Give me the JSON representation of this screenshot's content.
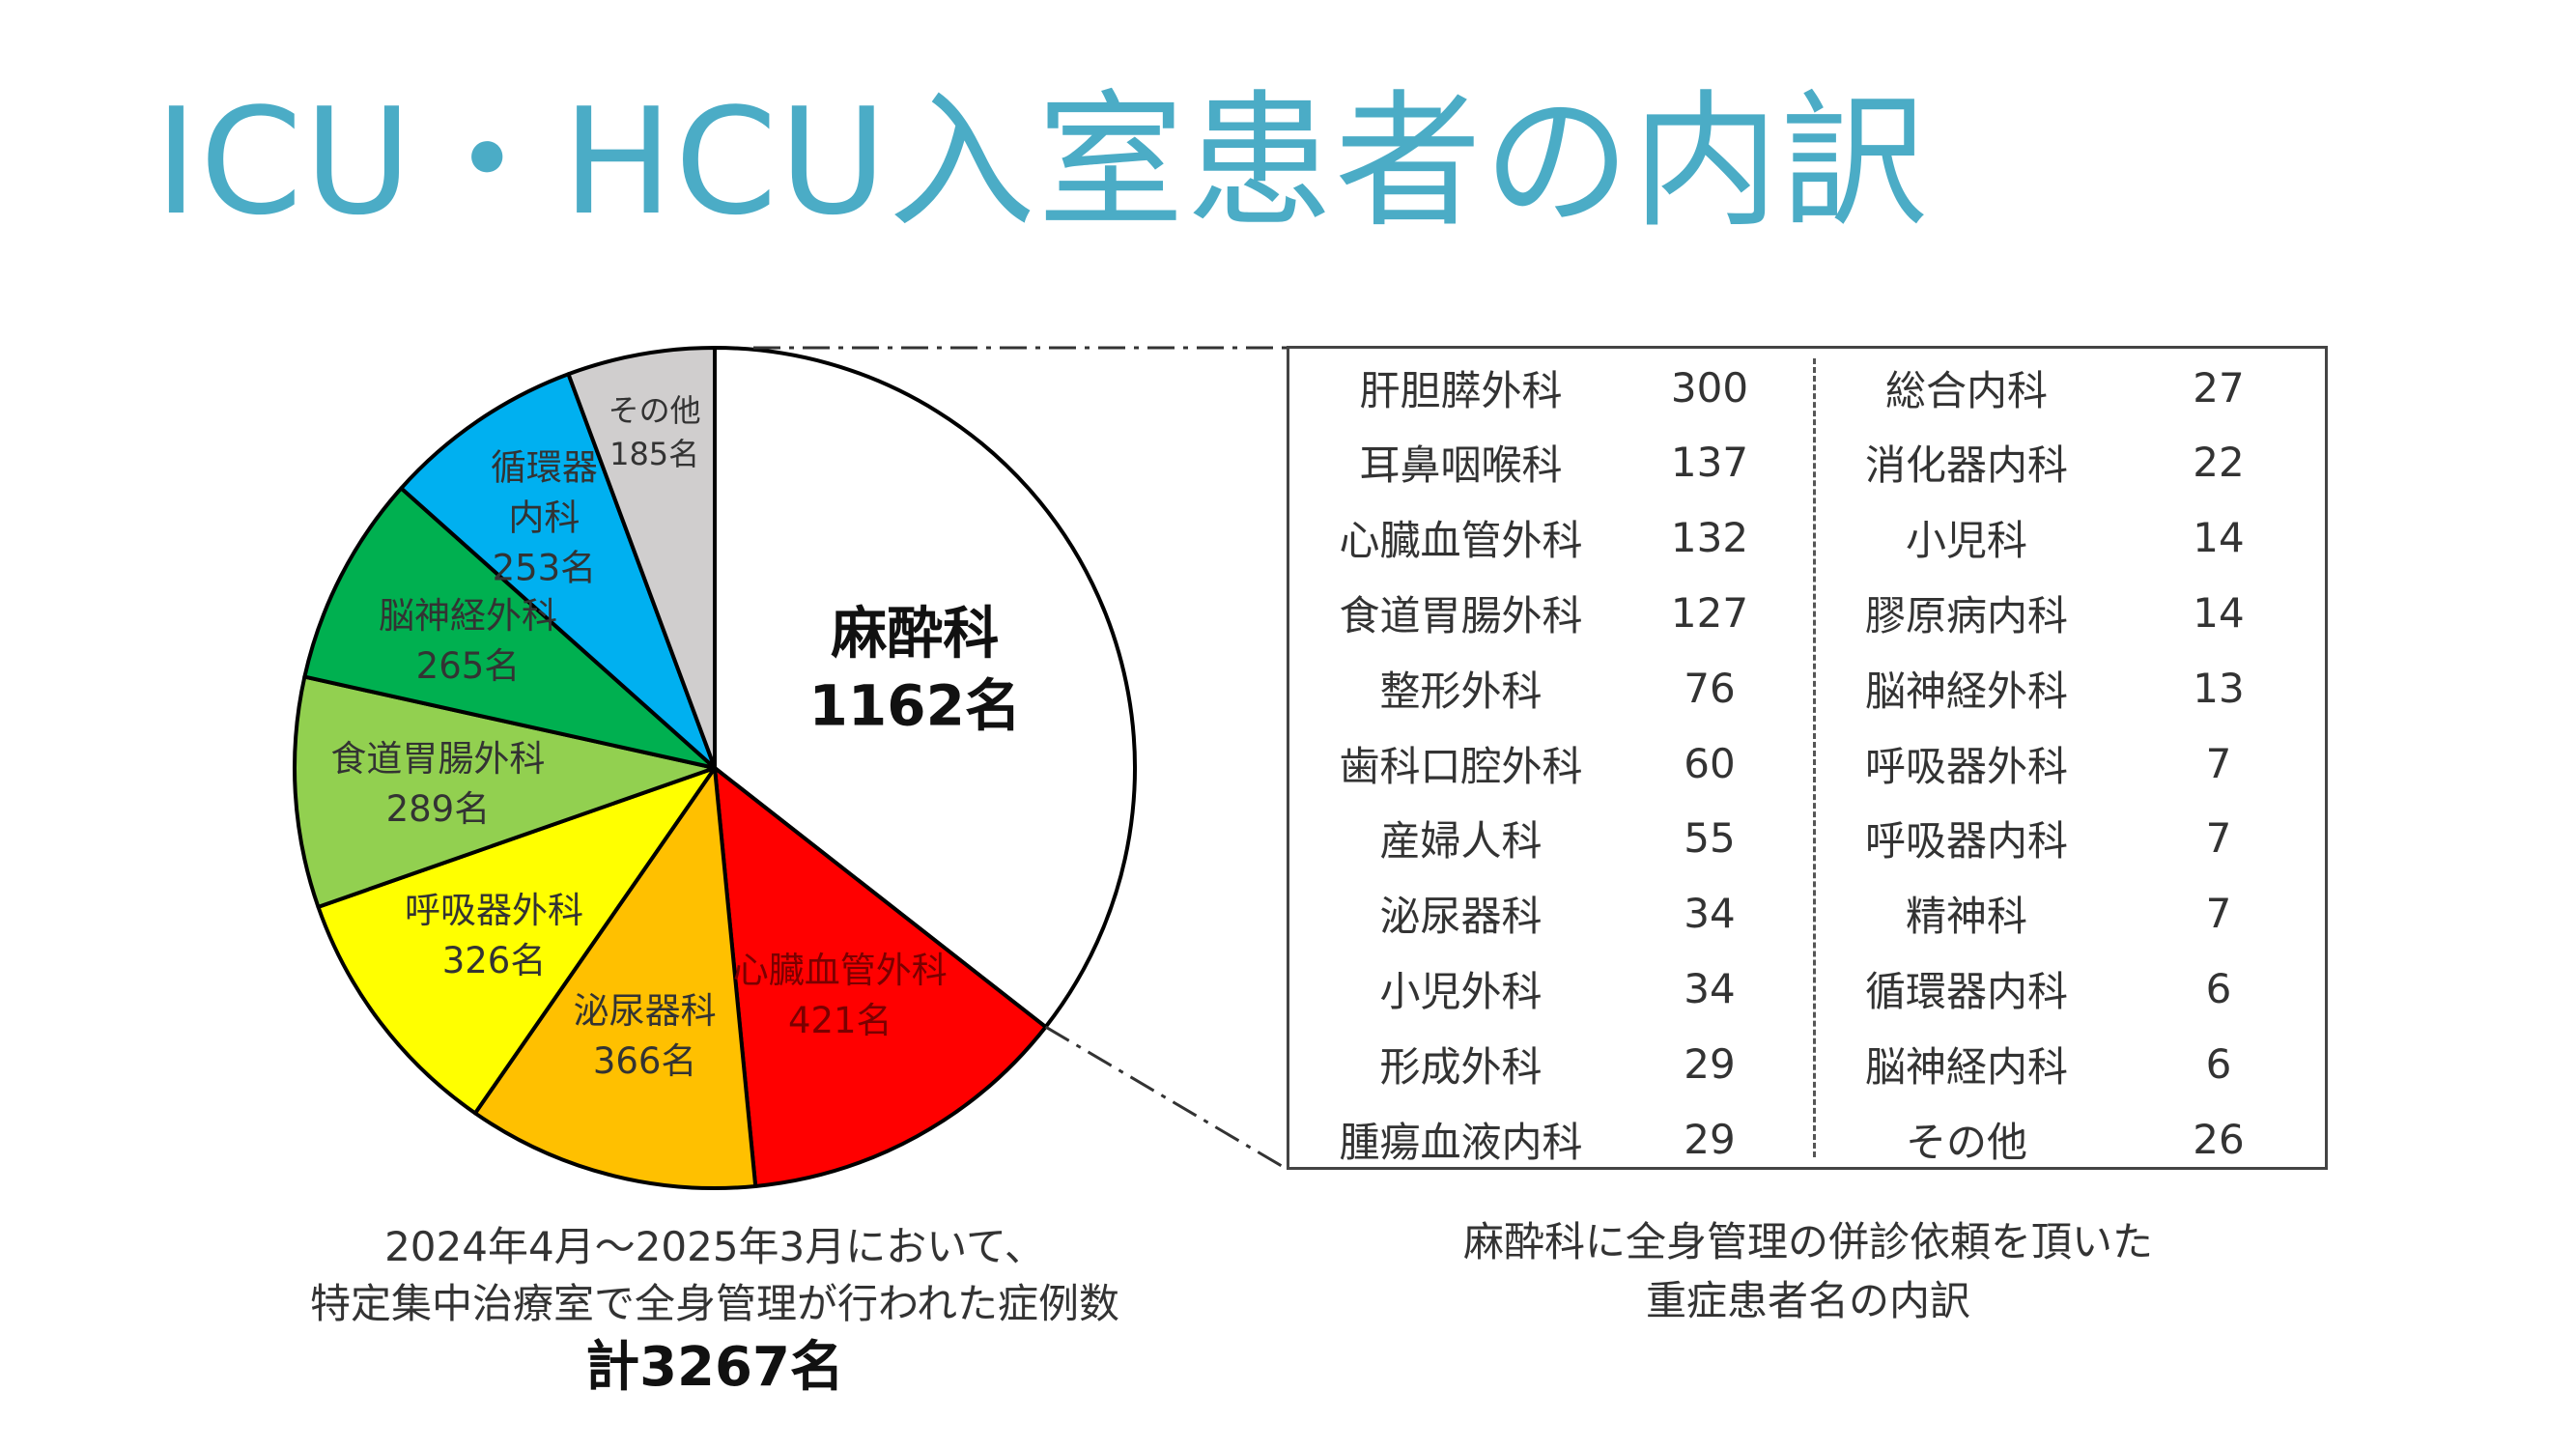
{
  "title": "ICU・HCU入室患者の内訳",
  "chart_data": {
    "type": "pie",
    "slices": [
      {
        "label": "麻酔科",
        "value": 1162,
        "value_label": "1162名",
        "color": "#ffffff"
      },
      {
        "label": "心臓血管外科",
        "value": 421,
        "value_label": "421名",
        "color": "#ff0000"
      },
      {
        "label": "泌尿器科",
        "value": 366,
        "value_label": "366名",
        "color": "#ffc000"
      },
      {
        "label": "呼吸器外科",
        "value": 326,
        "value_label": "326名",
        "color": "#ffff00"
      },
      {
        "label": "食道胃腸外科",
        "value": 289,
        "value_label": "289名",
        "color": "#92d050"
      },
      {
        "label": "脳神経外科",
        "value": 265,
        "value_label": "265名",
        "color": "#00b050"
      },
      {
        "label": "循環器内科",
        "label_lines": [
          "循環器",
          "内科"
        ],
        "value": 253,
        "value_label": "253名",
        "color": "#00b0f0"
      },
      {
        "label": "その他",
        "value": 185,
        "value_label": "185名",
        "color": "#d0cece"
      }
    ],
    "start": "top",
    "direction": "clockwise",
    "legend": "none"
  },
  "breakdown": {
    "left": [
      {
        "name": "肝胆膵外科",
        "value": "300"
      },
      {
        "name": "耳鼻咽喉科",
        "value": "137"
      },
      {
        "name": "心臓血管外科",
        "value": "132"
      },
      {
        "name": "食道胃腸外科",
        "value": "127"
      },
      {
        "name": "整形外科",
        "value": "76"
      },
      {
        "name": "歯科口腔外科",
        "value": "60"
      },
      {
        "name": "産婦人科",
        "value": "55"
      },
      {
        "name": "泌尿器科",
        "value": "34"
      },
      {
        "name": "小児外科",
        "value": "34"
      },
      {
        "name": "形成外科",
        "value": "29"
      },
      {
        "name": "腫瘍血液内科",
        "value": "29"
      }
    ],
    "right": [
      {
        "name": "総合内科",
        "value": "27"
      },
      {
        "name": "消化器内科",
        "value": "22"
      },
      {
        "name": "小児科",
        "value": "14"
      },
      {
        "name": "膠原病内科",
        "value": "14"
      },
      {
        "name": "脳神経外科",
        "value": "13"
      },
      {
        "name": "呼吸器外科",
        "value": "7"
      },
      {
        "name": "呼吸器内科",
        "value": "7"
      },
      {
        "name": "精神科",
        "value": "7"
      },
      {
        "name": "循環器内科",
        "value": "6"
      },
      {
        "name": "脳神経内科",
        "value": "6"
      },
      {
        "name": "その他",
        "value": "26"
      }
    ]
  },
  "caption_left": {
    "line1": "2024年4月〜2025年3月において、",
    "line2": "特定集中治療室で全身管理が行われた症例数",
    "total": "計3267名"
  },
  "caption_right": {
    "line1": "麻酔科に全身管理の併診依頼を頂いた",
    "line2": "重症患者名の内訳"
  }
}
